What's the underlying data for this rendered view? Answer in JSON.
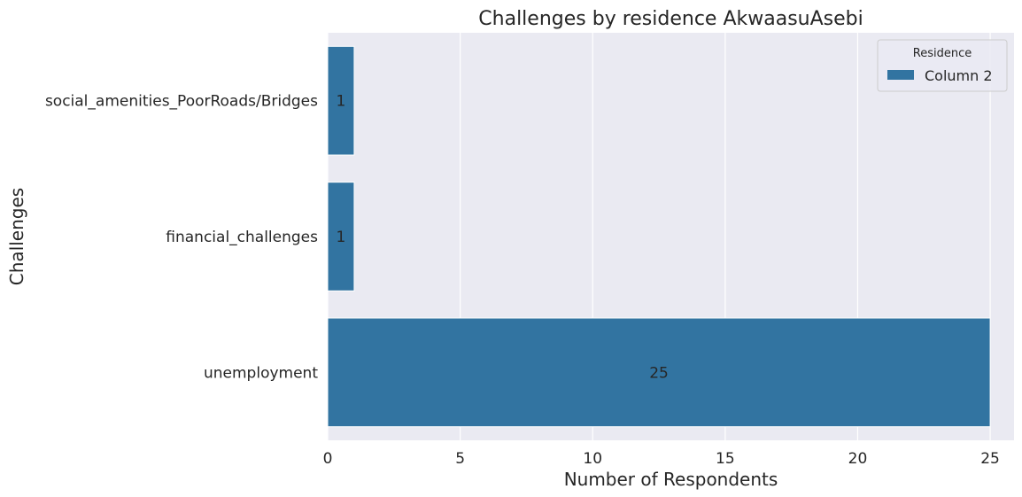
{
  "chart_data": {
    "type": "bar",
    "orientation": "horizontal",
    "title": "Challenges by residence AkwaasuAsebi",
    "xlabel": "Number of Respondents",
    "ylabel": "Challenges",
    "categories": [
      "social_amenities_PoorRoads/Bridges",
      "financial_challenges",
      "unemployment"
    ],
    "series": [
      {
        "name": "Column 2",
        "values": [
          1,
          1,
          25
        ],
        "color": "#3274a1"
      }
    ],
    "data_labels": [
      "1",
      "1",
      "25"
    ],
    "xlim": [
      0,
      25.9
    ],
    "xticks": [
      0,
      5,
      10,
      15,
      20,
      25
    ],
    "grid": true,
    "legend": {
      "title": "Residence",
      "position": "upper-right"
    },
    "background_color": "#eaeaf2",
    "grid_color": "#ffffff"
  }
}
